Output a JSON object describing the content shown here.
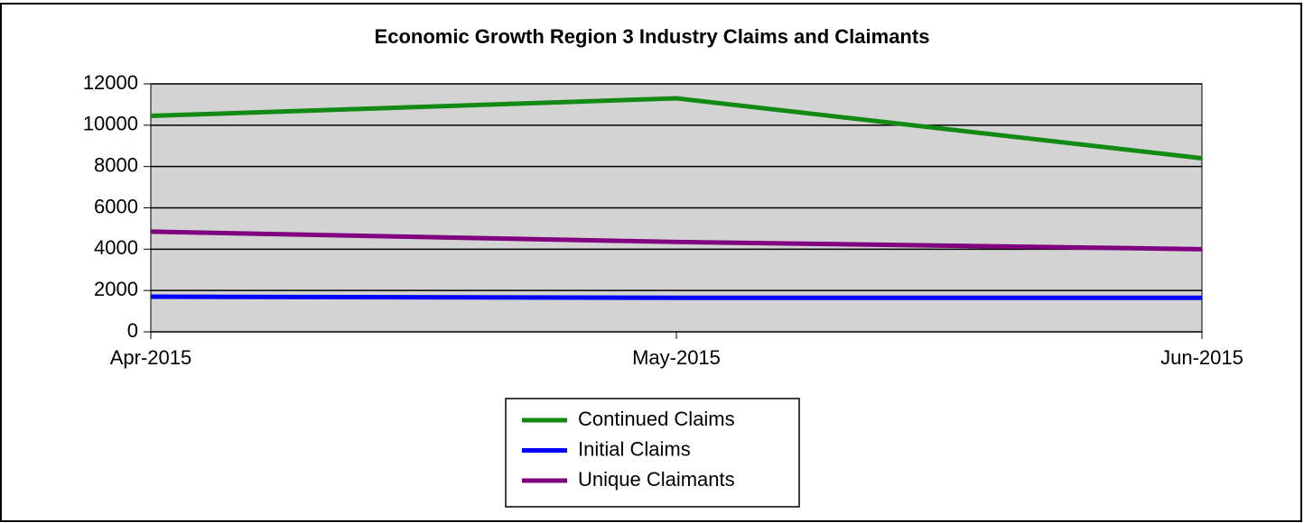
{
  "chart_data": {
    "type": "line",
    "title": "Economic Growth Region 3 Industry Claims and Claimants",
    "categories": [
      "Apr-2015",
      "May-2015",
      "Jun-2015"
    ],
    "series": [
      {
        "name": "Continued Claims",
        "color": "#138a13",
        "values": [
          10450,
          11300,
          8400
        ]
      },
      {
        "name": "Initial Claims",
        "color": "#0000ff",
        "values": [
          1700,
          1650,
          1650
        ]
      },
      {
        "name": "Unique Claimants",
        "color": "#800080",
        "values": [
          4850,
          4350,
          4000
        ]
      }
    ],
    "ylim": [
      0,
      12000
    ],
    "yticks": [
      0,
      2000,
      4000,
      6000,
      8000,
      10000,
      12000
    ],
    "grid": true
  }
}
